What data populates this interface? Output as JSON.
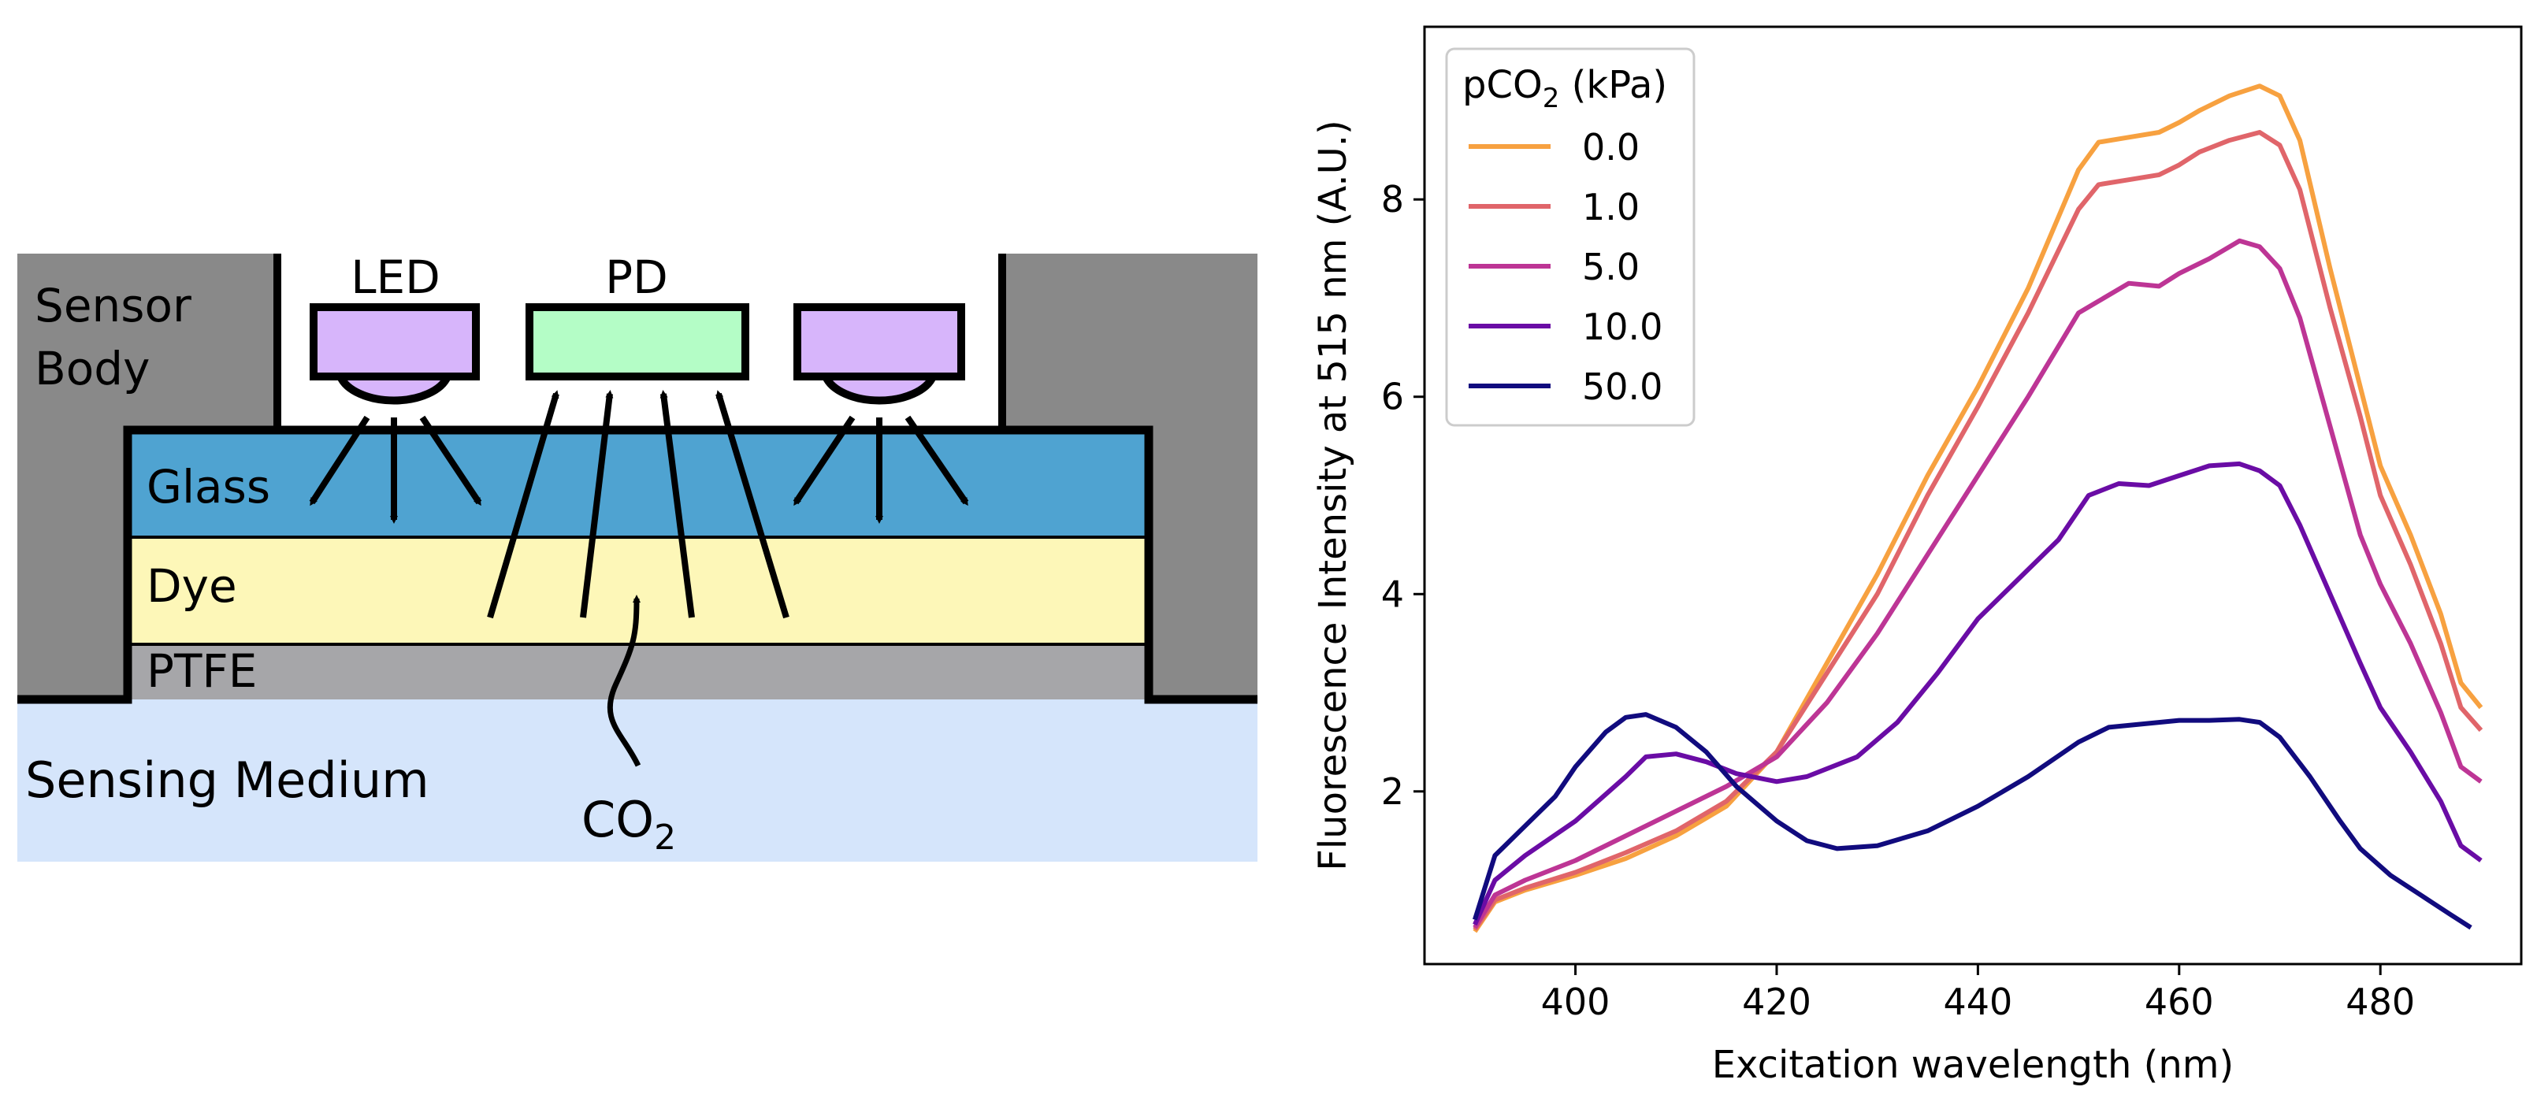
{
  "diagram": {
    "labels": {
      "sensor_body_line1": "Sensor",
      "sensor_body_line2": "Body",
      "led": "LED",
      "pd": "PD",
      "glass": "Glass",
      "dye": "Dye",
      "ptfe": "PTFE",
      "sensing_medium": "Sensing Medium",
      "co2_main": "CO",
      "co2_sub": "2"
    },
    "colors": {
      "sensor_body": "#898989",
      "glass": "#4fa3d1",
      "dye": "#fdf7b8",
      "ptfe": "#a6a6a9",
      "sensing_medium": "#d5e5fb",
      "led": "#d7b5fb",
      "pd": "#b4fdc6"
    }
  },
  "chart_data": {
    "type": "line",
    "xlabel": "Excitation wavelength (nm)",
    "ylabel": "Fluorescence Intensity at 515 nm (A.U.)",
    "xlim": [
      385,
      494
    ],
    "ylim": [
      0.25,
      9.75
    ],
    "xticks": [
      400,
      420,
      440,
      460,
      480
    ],
    "yticks": [
      2,
      4,
      6,
      8
    ],
    "grid": false,
    "legend": {
      "placement": "top-left",
      "title_main": "pCO",
      "title_sub": "2",
      "title_rest": " (kPa)"
    },
    "series": [
      {
        "name": "0.0",
        "color": "#f7a140",
        "points": [
          [
            390,
            0.58
          ],
          [
            392,
            0.88
          ],
          [
            395,
            1.0
          ],
          [
            400,
            1.15
          ],
          [
            405,
            1.32
          ],
          [
            410,
            1.55
          ],
          [
            415,
            1.85
          ],
          [
            420,
            2.4
          ],
          [
            425,
            3.3
          ],
          [
            430,
            4.2
          ],
          [
            435,
            5.2
          ],
          [
            440,
            6.1
          ],
          [
            445,
            7.1
          ],
          [
            450,
            8.3
          ],
          [
            452,
            8.58
          ],
          [
            455,
            8.63
          ],
          [
            458,
            8.68
          ],
          [
            460,
            8.78
          ],
          [
            462,
            8.9
          ],
          [
            465,
            9.05
          ],
          [
            468,
            9.15
          ],
          [
            470,
            9.05
          ],
          [
            472,
            8.6
          ],
          [
            475,
            7.3
          ],
          [
            478,
            6.1
          ],
          [
            480,
            5.3
          ],
          [
            483,
            4.6
          ],
          [
            486,
            3.8
          ],
          [
            488,
            3.1
          ],
          [
            490,
            2.85
          ]
        ]
      },
      {
        "name": "1.0",
        "color": "#e0656a",
        "points": [
          [
            390,
            0.6
          ],
          [
            392,
            0.9
          ],
          [
            395,
            1.02
          ],
          [
            400,
            1.18
          ],
          [
            405,
            1.38
          ],
          [
            410,
            1.6
          ],
          [
            415,
            1.9
          ],
          [
            420,
            2.4
          ],
          [
            425,
            3.2
          ],
          [
            430,
            4.0
          ],
          [
            435,
            5.0
          ],
          [
            440,
            5.9
          ],
          [
            445,
            6.85
          ],
          [
            450,
            7.9
          ],
          [
            452,
            8.15
          ],
          [
            455,
            8.2
          ],
          [
            458,
            8.25
          ],
          [
            460,
            8.35
          ],
          [
            462,
            8.48
          ],
          [
            465,
            8.6
          ],
          [
            468,
            8.68
          ],
          [
            470,
            8.55
          ],
          [
            472,
            8.1
          ],
          [
            475,
            6.9
          ],
          [
            478,
            5.8
          ],
          [
            480,
            5.0
          ],
          [
            483,
            4.3
          ],
          [
            486,
            3.5
          ],
          [
            488,
            2.85
          ],
          [
            490,
            2.62
          ]
        ]
      },
      {
        "name": "5.0",
        "color": "#bd3595",
        "points": [
          [
            390,
            0.62
          ],
          [
            392,
            0.95
          ],
          [
            395,
            1.1
          ],
          [
            400,
            1.3
          ],
          [
            405,
            1.55
          ],
          [
            410,
            1.8
          ],
          [
            415,
            2.05
          ],
          [
            420,
            2.35
          ],
          [
            425,
            2.9
          ],
          [
            430,
            3.6
          ],
          [
            435,
            4.4
          ],
          [
            440,
            5.2
          ],
          [
            445,
            6.0
          ],
          [
            450,
            6.85
          ],
          [
            455,
            7.15
          ],
          [
            458,
            7.12
          ],
          [
            460,
            7.25
          ],
          [
            463,
            7.4
          ],
          [
            466,
            7.58
          ],
          [
            468,
            7.52
          ],
          [
            470,
            7.3
          ],
          [
            472,
            6.8
          ],
          [
            475,
            5.7
          ],
          [
            478,
            4.6
          ],
          [
            480,
            4.1
          ],
          [
            483,
            3.5
          ],
          [
            486,
            2.8
          ],
          [
            488,
            2.25
          ],
          [
            490,
            2.1
          ]
        ]
      },
      {
        "name": "10.0",
        "color": "#6a0ca5",
        "points": [
          [
            390,
            0.65
          ],
          [
            392,
            1.1
          ],
          [
            395,
            1.35
          ],
          [
            400,
            1.7
          ],
          [
            405,
            2.15
          ],
          [
            407,
            2.35
          ],
          [
            410,
            2.38
          ],
          [
            413,
            2.3
          ],
          [
            416,
            2.18
          ],
          [
            420,
            2.1
          ],
          [
            423,
            2.15
          ],
          [
            428,
            2.35
          ],
          [
            432,
            2.7
          ],
          [
            436,
            3.2
          ],
          [
            440,
            3.75
          ],
          [
            444,
            4.15
          ],
          [
            448,
            4.55
          ],
          [
            451,
            5.0
          ],
          [
            454,
            5.12
          ],
          [
            457,
            5.1
          ],
          [
            460,
            5.2
          ],
          [
            463,
            5.3
          ],
          [
            466,
            5.32
          ],
          [
            468,
            5.25
          ],
          [
            470,
            5.1
          ],
          [
            472,
            4.7
          ],
          [
            475,
            4.0
          ],
          [
            478,
            3.3
          ],
          [
            480,
            2.85
          ],
          [
            483,
            2.4
          ],
          [
            486,
            1.9
          ],
          [
            488,
            1.45
          ],
          [
            490,
            1.3
          ]
        ]
      },
      {
        "name": "50.0",
        "color": "#110b7e",
        "points": [
          [
            390,
            0.7
          ],
          [
            392,
            1.35
          ],
          [
            395,
            1.65
          ],
          [
            398,
            1.95
          ],
          [
            400,
            2.25
          ],
          [
            403,
            2.6
          ],
          [
            405,
            2.75
          ],
          [
            407,
            2.78
          ],
          [
            410,
            2.65
          ],
          [
            413,
            2.4
          ],
          [
            416,
            2.05
          ],
          [
            420,
            1.7
          ],
          [
            423,
            1.5
          ],
          [
            426,
            1.42
          ],
          [
            430,
            1.45
          ],
          [
            435,
            1.6
          ],
          [
            440,
            1.85
          ],
          [
            445,
            2.15
          ],
          [
            450,
            2.5
          ],
          [
            453,
            2.65
          ],
          [
            456,
            2.68
          ],
          [
            460,
            2.72
          ],
          [
            463,
            2.72
          ],
          [
            466,
            2.73
          ],
          [
            468,
            2.7
          ],
          [
            470,
            2.55
          ],
          [
            473,
            2.15
          ],
          [
            476,
            1.7
          ],
          [
            478,
            1.42
          ],
          [
            481,
            1.15
          ],
          [
            484,
            0.95
          ],
          [
            487,
            0.75
          ],
          [
            489,
            0.62
          ]
        ]
      }
    ]
  }
}
